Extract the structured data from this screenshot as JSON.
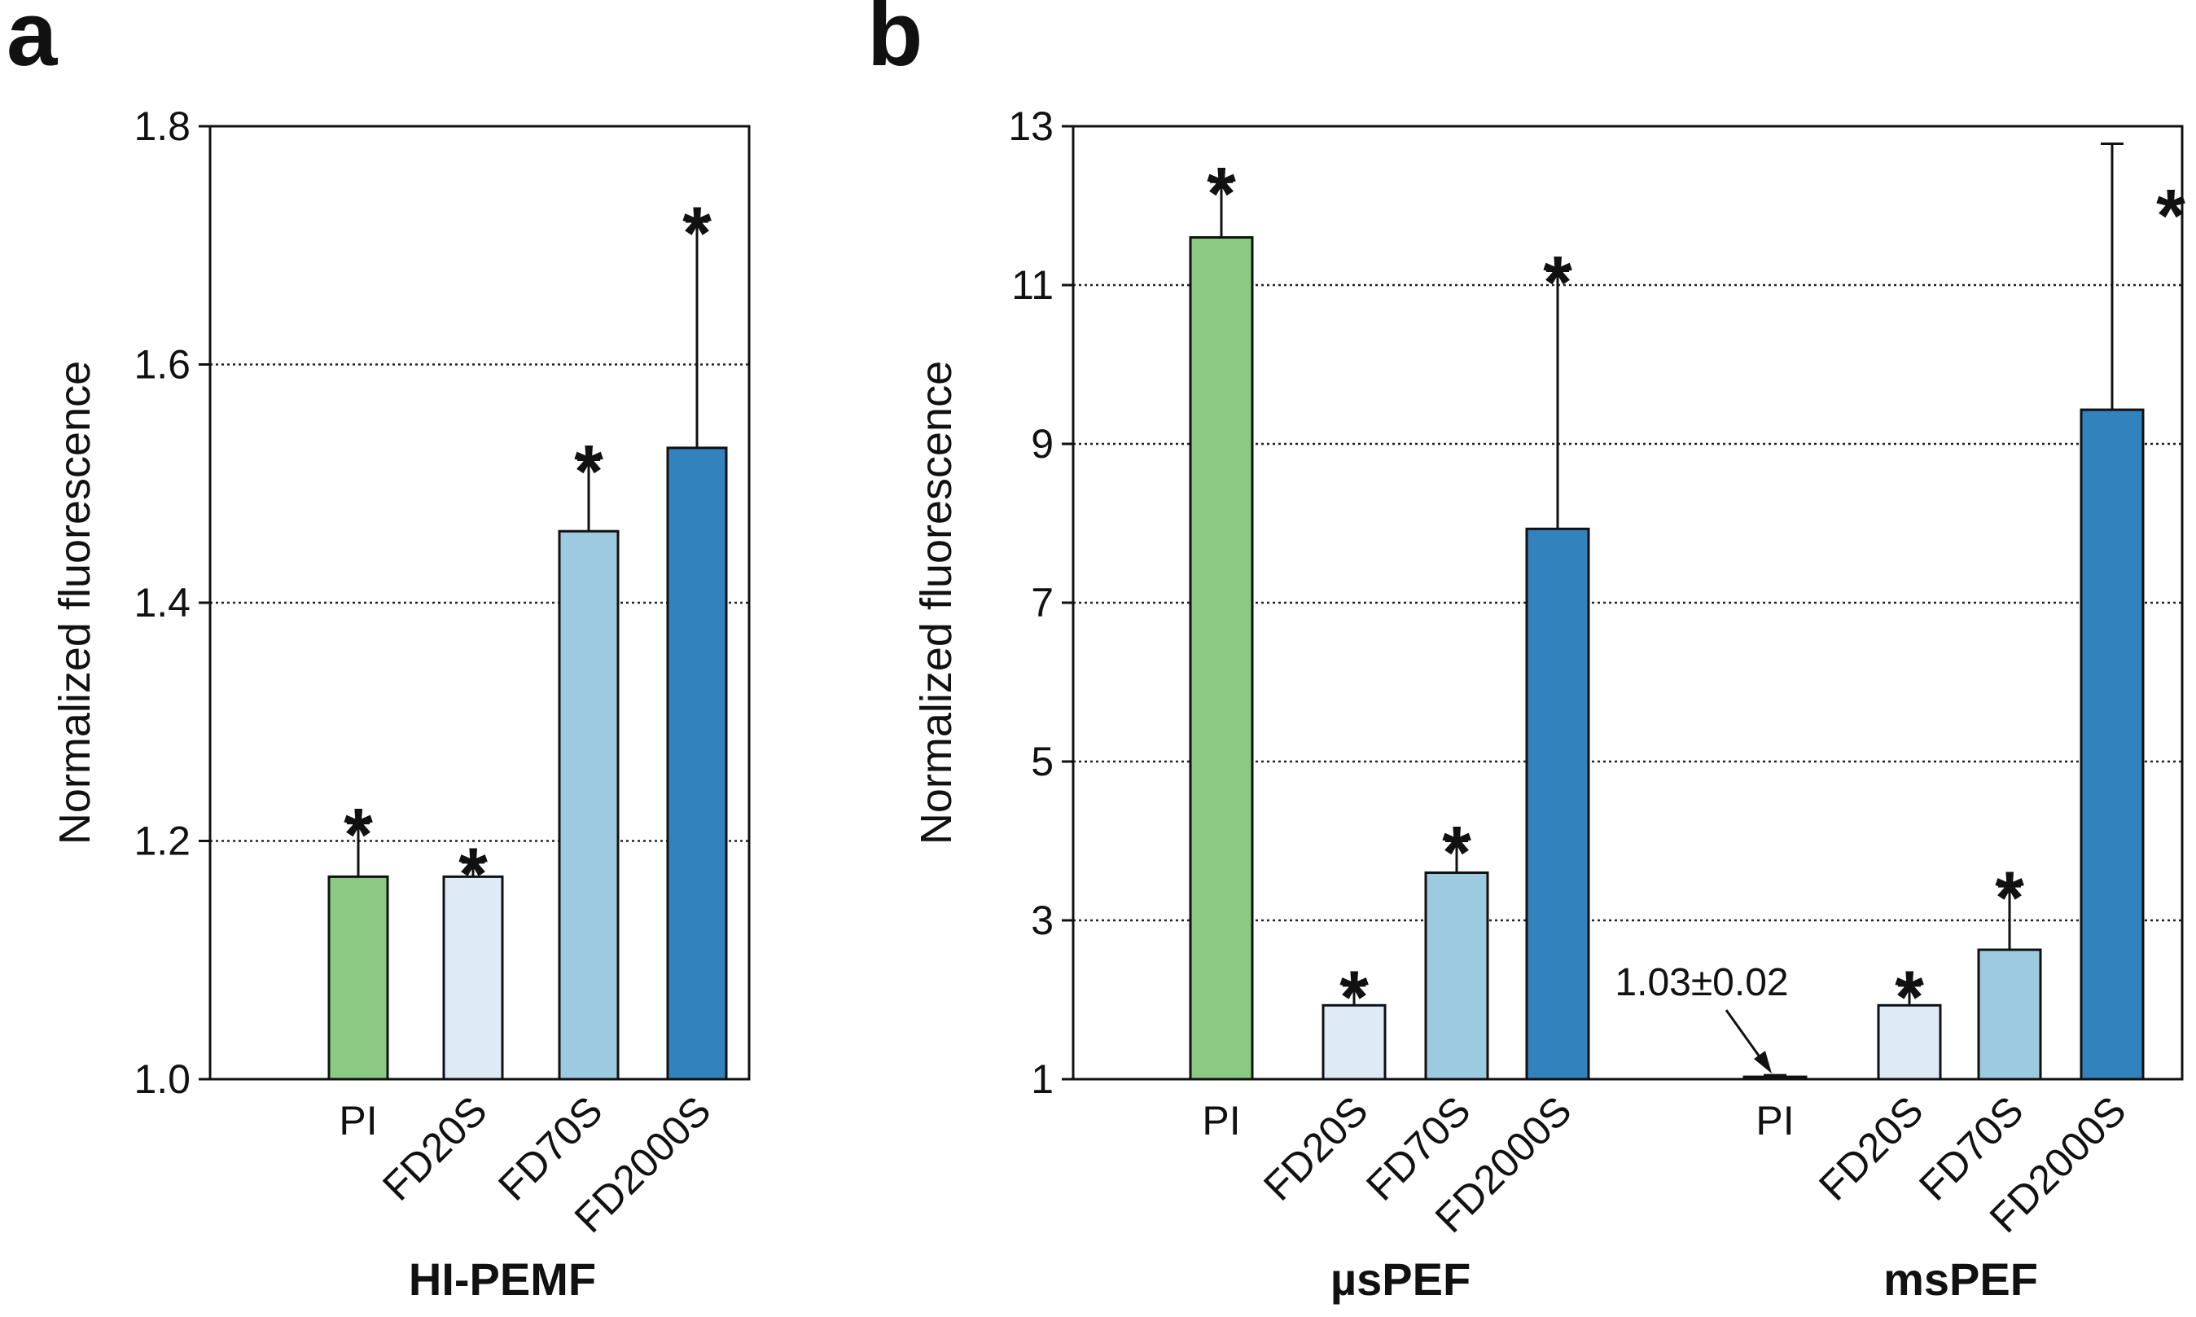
{
  "chart_data": [
    {
      "panel": "a",
      "type": "bar",
      "ylabel": "Normalized fluorescence",
      "ylim": [
        1.0,
        1.8
      ],
      "yticks": [
        "1.0",
        "1.2",
        "1.4",
        "1.6",
        "1.8"
      ],
      "grid": "dotted horizontal",
      "groups": [
        {
          "label": "HI-PEMF",
          "bars": [
            {
              "category": "PI",
              "value": 1.17,
              "error": 0.045,
              "sig": "*",
              "color": "#8cc983"
            },
            {
              "category": "FD20S",
              "value": 1.17,
              "error": 0.012,
              "sig": "*",
              "color": "#deebf7"
            },
            {
              "category": "FD70S",
              "value": 1.46,
              "error": 0.06,
              "sig": "*",
              "color": "#9ecae1"
            },
            {
              "category": "FD2000S",
              "value": 1.53,
              "error": 0.19,
              "sig": "*",
              "color": "#3282bd"
            }
          ]
        }
      ]
    },
    {
      "panel": "b",
      "type": "bar",
      "ylabel": "Normalized fluorescence",
      "ylim": [
        1,
        13
      ],
      "yticks": [
        "1",
        "3",
        "5",
        "7",
        "9",
        "11",
        "13"
      ],
      "grid": "dotted horizontal",
      "groups": [
        {
          "label": "µsPEF",
          "bars": [
            {
              "category": "PI",
              "value": 11.6,
              "error": 0.7,
              "sig": "*",
              "color": "#8cc983"
            },
            {
              "category": "FD20S",
              "value": 1.93,
              "error": 0.25,
              "sig": "*",
              "color": "#deebf7"
            },
            {
              "category": "FD70S",
              "value": 3.6,
              "error": 0.4,
              "sig": "*",
              "color": "#9ecae1"
            },
            {
              "category": "FD2000S",
              "value": 7.93,
              "error": 3.25,
              "sig": "*",
              "color": "#3282bd"
            }
          ]
        },
        {
          "label": "msPEF",
          "bars": [
            {
              "category": "PI",
              "value": 1.03,
              "error": 0.02,
              "sig": "",
              "color": "#8cc983",
              "annotation": "1.03±0.02"
            },
            {
              "category": "FD20S",
              "value": 1.93,
              "error": 0.25,
              "sig": "*",
              "color": "#deebf7"
            },
            {
              "category": "FD70S",
              "value": 2.63,
              "error": 0.8,
              "sig": "*",
              "color": "#9ecae1"
            },
            {
              "category": "FD2000S",
              "value": 9.43,
              "error": 3.35,
              "sig": "*",
              "color": "#3282bd"
            }
          ]
        }
      ]
    }
  ]
}
